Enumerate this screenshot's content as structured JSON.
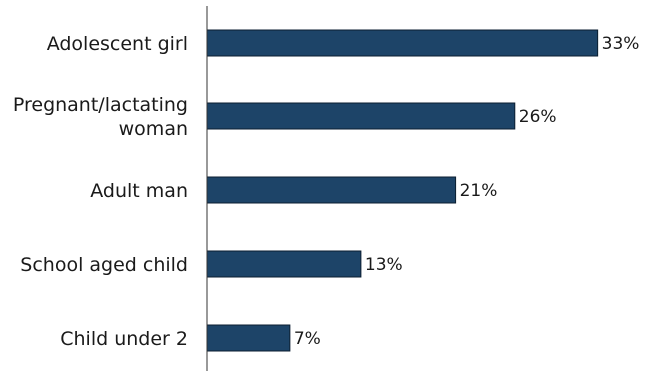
{
  "chart_data": {
    "type": "bar",
    "orientation": "horizontal",
    "categories": [
      [
        "Adolescent girl"
      ],
      [
        "Pregnant/lactating",
        "woman"
      ],
      [
        "Adult man"
      ],
      [
        "School aged child"
      ],
      [
        "Child under 2"
      ]
    ],
    "values": [
      33,
      26,
      21,
      13,
      7
    ],
    "data_labels": [
      "33%",
      "26%",
      "21%",
      "13%",
      "7%"
    ],
    "xlim": [
      0,
      37
    ],
    "grid": false,
    "legend": "none",
    "bar_color": "#1d4468"
  }
}
